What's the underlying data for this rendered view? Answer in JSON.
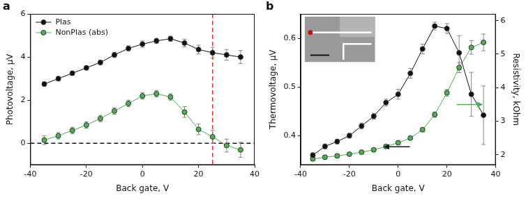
{
  "chart_data": [
    {
      "type": "line",
      "title": "a",
      "x_label": "Back gate, V",
      "y_label": "Photovoltage, µV",
      "x": [
        -35,
        -30,
        -25,
        -20,
        -15,
        -10,
        -5,
        0,
        5,
        10,
        15,
        20,
        25,
        30,
        35
      ],
      "series": [
        {
          "name": "Plas",
          "color": "#111111",
          "marker": "circle",
          "line_style": "solid",
          "values": [
            2.75,
            3.0,
            3.25,
            3.5,
            3.75,
            4.1,
            4.4,
            4.6,
            4.75,
            4.85,
            4.65,
            4.35,
            4.2,
            4.1,
            4.0
          ],
          "errors": [
            0.1,
            0.1,
            0.1,
            0.1,
            0.1,
            0.12,
            0.12,
            0.15,
            0.12,
            0.12,
            0.18,
            0.2,
            0.25,
            0.25,
            0.3
          ]
        },
        {
          "name": "NonPlas (abs)",
          "color": "#4caf50",
          "marker": "circle",
          "line_style": "solid",
          "values": [
            0.15,
            0.35,
            0.6,
            0.85,
            1.15,
            1.5,
            1.85,
            2.2,
            2.3,
            2.15,
            1.45,
            0.65,
            0.3,
            -0.1,
            -0.3
          ],
          "errors": [
            0.2,
            0.15,
            0.15,
            0.15,
            0.15,
            0.15,
            0.15,
            0.15,
            0.15,
            0.15,
            0.25,
            0.25,
            0.3,
            0.3,
            0.35
          ]
        }
      ],
      "reference_lines": [
        {
          "axis": "x",
          "value": 25,
          "color": "#e03030",
          "line_style": "dashed"
        },
        {
          "axis": "y",
          "value": 0,
          "color": "#111111",
          "line_style": "dashed"
        }
      ],
      "xlim": [
        -40,
        40
      ],
      "xticks": [
        -40,
        -20,
        0,
        20,
        40
      ],
      "ylim": [
        -1,
        6
      ],
      "yticks": [
        0,
        2,
        4,
        6
      ],
      "grid": false,
      "legend": "upper left"
    },
    {
      "type": "line",
      "title": "b",
      "x_label": "Back gate, V",
      "y_label": "Thermovoltage, µV",
      "y2_label": "Resistivity, kOhm",
      "x": [
        -35,
        -30,
        -25,
        -20,
        -15,
        -10,
        -5,
        0,
        5,
        10,
        15,
        20,
        25,
        30,
        35
      ],
      "series": [
        {
          "name": "Thermovoltage",
          "color": "#111111",
          "marker": "circle",
          "line_style": "solid",
          "values": [
            0.36,
            0.378,
            0.388,
            0.4,
            0.42,
            0.44,
            0.468,
            0.485,
            0.528,
            0.578,
            0.625,
            0.62,
            0.57,
            0.485,
            0.442
          ],
          "errors": [
            0.005,
            0.005,
            0.005,
            0.005,
            0.006,
            0.006,
            0.007,
            0.01,
            0.01,
            0.01,
            0.008,
            0.01,
            0.035,
            0.045,
            0.06
          ]
        },
        {
          "name": "Resistivity",
          "color": "#4caf50",
          "marker": "circle",
          "line_style": "solid",
          "axis": "y2",
          "values": [
            1.88,
            1.93,
            1.97,
            2.02,
            2.08,
            2.15,
            2.25,
            2.36,
            2.5,
            2.75,
            3.2,
            3.85,
            4.6,
            5.2,
            5.35
          ],
          "errors": [
            0.05,
            0.05,
            0.05,
            0.05,
            0.05,
            0.05,
            0.05,
            0.05,
            0.05,
            0.06,
            0.08,
            0.1,
            0.15,
            0.2,
            0.25
          ]
        }
      ],
      "xlim": [
        -40,
        40
      ],
      "xticks": [
        -40,
        -20,
        0,
        20,
        40
      ],
      "ylim": [
        0.34,
        0.65
      ],
      "yticks": [
        0.4,
        0.5,
        0.6
      ],
      "y2lim": [
        1.7,
        6.2
      ],
      "y2ticks": [
        2,
        3,
        4,
        5,
        6
      ],
      "grid": false,
      "legend": false
    }
  ]
}
